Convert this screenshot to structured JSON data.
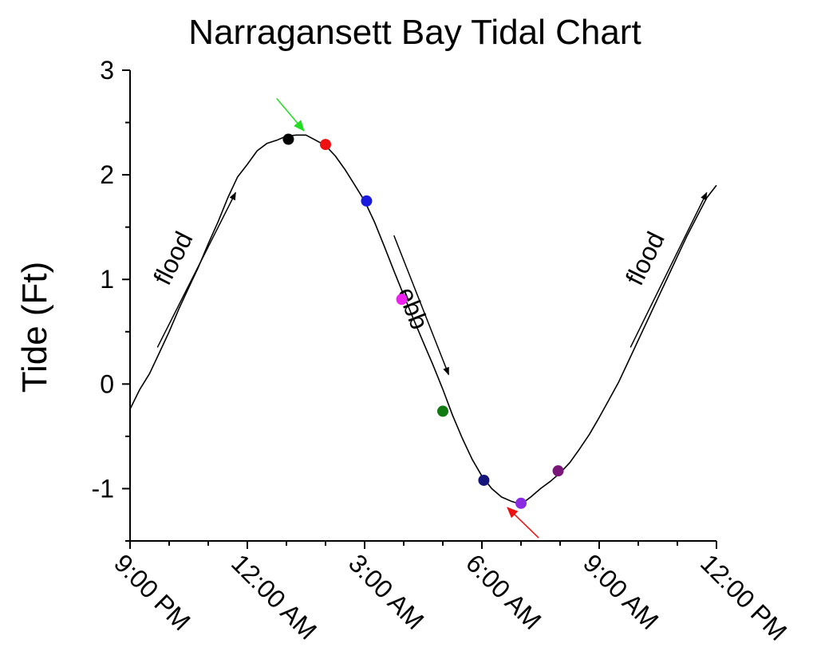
{
  "chart_data": {
    "type": "line",
    "title": "Narragansett Bay Tidal Chart",
    "xlabel": "",
    "ylabel": "Tide (Ft)",
    "xlim": [
      0,
      15
    ],
    "ylim": [
      -1.5,
      3
    ],
    "x_unit": "hours after 9:00 PM",
    "x_ticks": [
      {
        "x": 0,
        "label": "9:00 PM"
      },
      {
        "x": 3,
        "label": "12:00 AM"
      },
      {
        "x": 6,
        "label": "3:00 AM"
      },
      {
        "x": 9,
        "label": "6:00 AM"
      },
      {
        "x": 12,
        "label": "9:00 AM"
      },
      {
        "x": 15,
        "label": "12:00 PM"
      }
    ],
    "y_ticks": [
      {
        "y": -1,
        "label": "-1"
      },
      {
        "y": 0,
        "label": "0"
      },
      {
        "y": 1,
        "label": "1"
      },
      {
        "y": 2,
        "label": "2"
      },
      {
        "y": 3,
        "label": "3"
      }
    ],
    "series": [
      {
        "color": "#000000",
        "points": [
          [
            0.0,
            -0.24
          ],
          [
            0.25,
            -0.05
          ],
          [
            0.5,
            0.1
          ],
          [
            0.75,
            0.3
          ],
          [
            1.0,
            0.5
          ],
          [
            1.25,
            0.72
          ],
          [
            1.5,
            0.92
          ],
          [
            1.75,
            1.12
          ],
          [
            2.0,
            1.34
          ],
          [
            2.25,
            1.55
          ],
          [
            2.5,
            1.78
          ],
          [
            2.75,
            1.98
          ],
          [
            3.0,
            2.1
          ],
          [
            3.25,
            2.23
          ],
          [
            3.5,
            2.3
          ],
          [
            3.75,
            2.33
          ],
          [
            4.0,
            2.37
          ],
          [
            4.25,
            2.38
          ],
          [
            4.5,
            2.38
          ],
          [
            4.75,
            2.33
          ],
          [
            5.0,
            2.28
          ],
          [
            5.25,
            2.18
          ],
          [
            5.5,
            2.05
          ],
          [
            5.75,
            1.9
          ],
          [
            6.0,
            1.75
          ],
          [
            6.25,
            1.55
          ],
          [
            6.5,
            1.32
          ],
          [
            6.75,
            1.08
          ],
          [
            7.0,
            0.85
          ],
          [
            7.25,
            0.62
          ],
          [
            7.5,
            0.4
          ],
          [
            7.75,
            0.18
          ],
          [
            8.0,
            -0.05
          ],
          [
            8.25,
            -0.3
          ],
          [
            8.5,
            -0.52
          ],
          [
            8.75,
            -0.72
          ],
          [
            9.0,
            -0.88
          ],
          [
            9.25,
            -1.0
          ],
          [
            9.5,
            -1.08
          ],
          [
            9.75,
            -1.12
          ],
          [
            10.0,
            -1.15
          ],
          [
            10.25,
            -1.08
          ],
          [
            10.5,
            -1.0
          ],
          [
            10.75,
            -0.93
          ],
          [
            11.0,
            -0.85
          ],
          [
            11.25,
            -0.75
          ],
          [
            11.5,
            -0.62
          ],
          [
            11.75,
            -0.48
          ],
          [
            12.0,
            -0.32
          ],
          [
            12.25,
            -0.15
          ],
          [
            12.5,
            0.02
          ],
          [
            12.75,
            0.22
          ],
          [
            13.0,
            0.42
          ],
          [
            13.25,
            0.62
          ],
          [
            13.5,
            0.82
          ],
          [
            13.75,
            1.02
          ],
          [
            14.0,
            1.22
          ],
          [
            14.25,
            1.42
          ],
          [
            14.5,
            1.6
          ],
          [
            14.75,
            1.78
          ],
          [
            15.0,
            1.9
          ]
        ]
      }
    ],
    "markers": [
      {
        "x": 4.05,
        "y": 2.34,
        "color": "#000000"
      },
      {
        "x": 5.0,
        "y": 2.29,
        "color": "#ee1111"
      },
      {
        "x": 6.05,
        "y": 1.75,
        "color": "#1a1adf"
      },
      {
        "x": 6.95,
        "y": 0.81,
        "color": "#ee22ee"
      },
      {
        "x": 8.0,
        "y": -0.26,
        "color": "#117a11"
      },
      {
        "x": 9.05,
        "y": -0.92,
        "color": "#15157a"
      },
      {
        "x": 10.0,
        "y": -1.14,
        "color": "#8a2be2"
      },
      {
        "x": 10.95,
        "y": -0.83,
        "color": "#7a157a"
      }
    ],
    "annotations": [
      {
        "text": "flood",
        "from": [
          0.7,
          0.35
        ],
        "to": [
          2.7,
          1.83
        ],
        "color": "#000000"
      },
      {
        "text": "ebb",
        "from": [
          6.75,
          1.42
        ],
        "to": [
          8.15,
          0.09
        ],
        "color": "#000000"
      },
      {
        "text": "flood",
        "from": [
          12.8,
          0.35
        ],
        "to": [
          14.75,
          1.83
        ],
        "color": "#000000"
      },
      {
        "text": "",
        "from": [
          3.75,
          2.73
        ],
        "to": [
          4.45,
          2.42
        ],
        "color": "#22dd22"
      },
      {
        "text": "",
        "from": [
          10.45,
          -1.47
        ],
        "to": [
          9.65,
          -1.18
        ],
        "color": "#ee1111"
      }
    ],
    "grid": false
  }
}
